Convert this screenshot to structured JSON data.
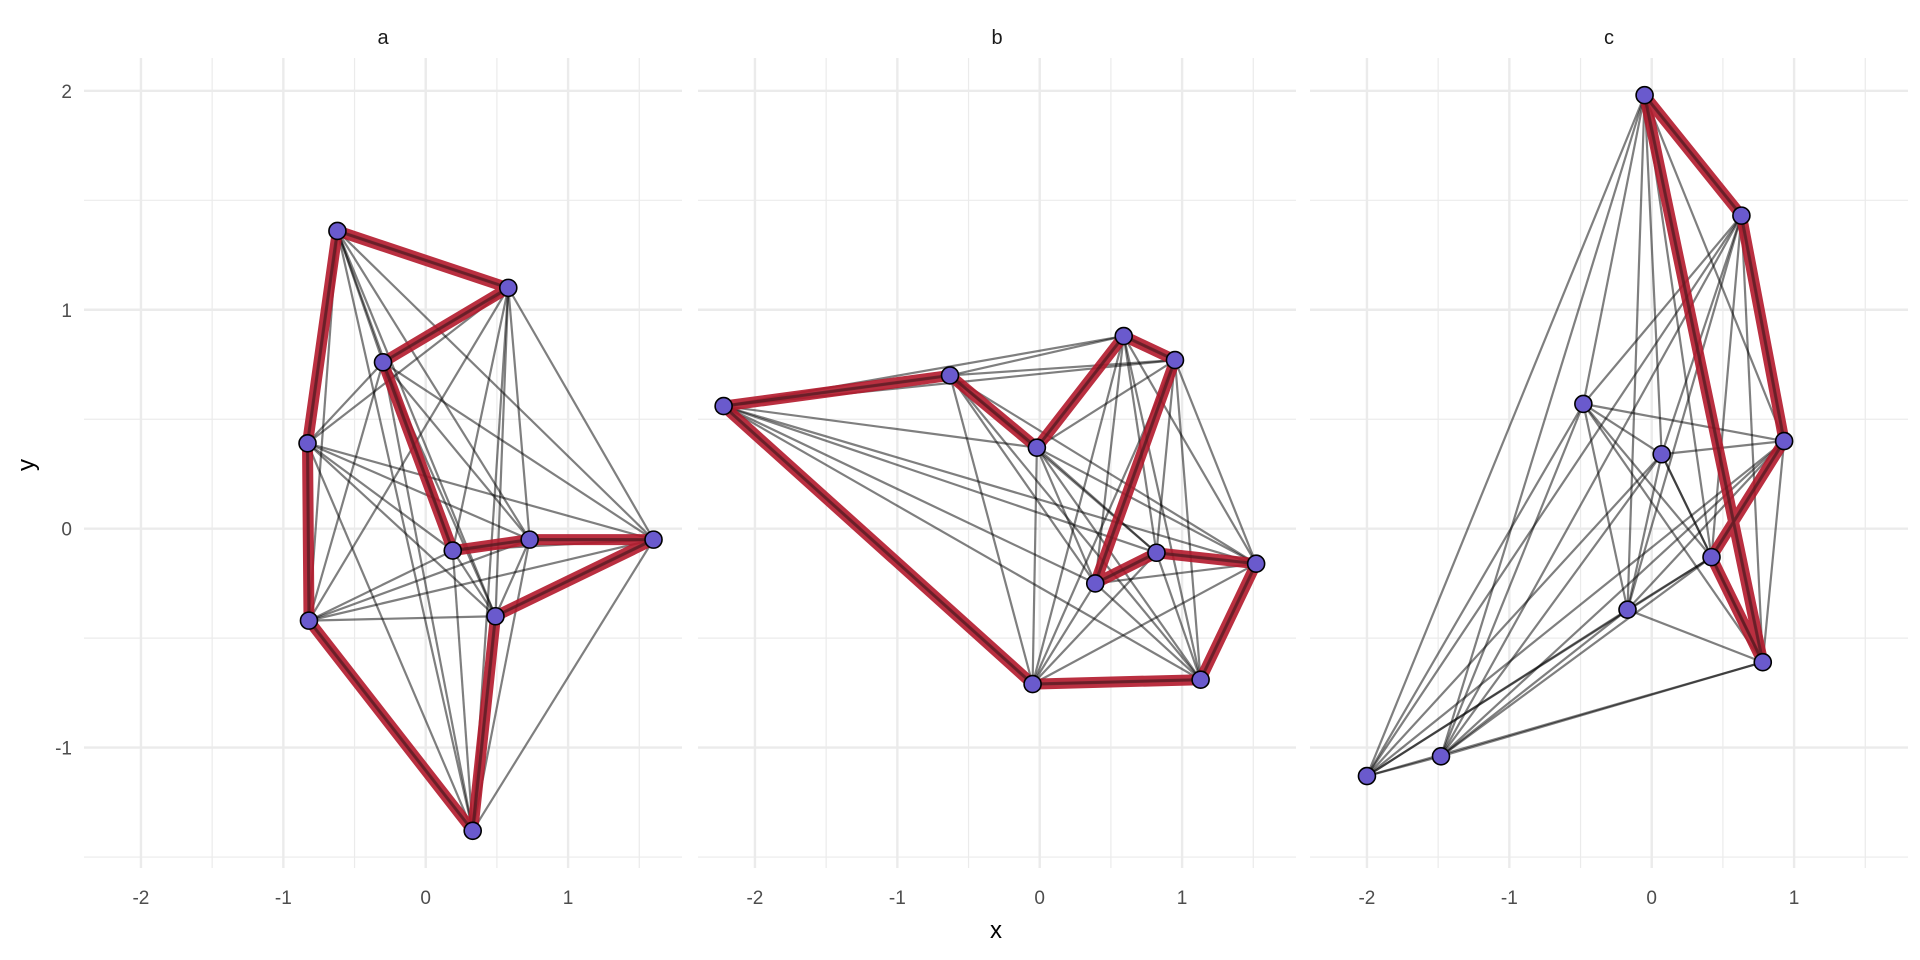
{
  "chart_data": {
    "type": "scatter",
    "xlabel": "x",
    "ylabel": "y",
    "xlim": [
      -2.4,
      1.8
    ],
    "ylim": [
      -1.55,
      2.15
    ],
    "x_ticks": [
      -2,
      -1,
      0,
      1
    ],
    "y_ticks": [
      -1,
      0,
      1,
      2
    ],
    "grid": true,
    "colors": {
      "path": "#b2182b",
      "point_fill": "#6a5acd",
      "edge": "#000000"
    },
    "panels": [
      {
        "label": "a",
        "points": [
          {
            "x": -0.62,
            "y": 1.36
          },
          {
            "x": 0.58,
            "y": 1.1
          },
          {
            "x": -0.3,
            "y": 0.76
          },
          {
            "x": -0.83,
            "y": 0.39
          },
          {
            "x": 0.19,
            "y": -0.1
          },
          {
            "x": 0.73,
            "y": -0.05
          },
          {
            "x": 1.6,
            "y": -0.05
          },
          {
            "x": -0.82,
            "y": -0.42
          },
          {
            "x": 0.49,
            "y": -0.4
          },
          {
            "x": 0.33,
            "y": -1.38
          }
        ],
        "path": [
          0,
          1,
          2,
          4,
          5,
          6,
          8,
          9,
          7,
          3,
          0
        ]
      },
      {
        "label": "b",
        "points": [
          {
            "x": -2.22,
            "y": 0.56
          },
          {
            "x": -0.63,
            "y": 0.7
          },
          {
            "x": -0.02,
            "y": 0.37
          },
          {
            "x": 0.59,
            "y": 0.88
          },
          {
            "x": 0.95,
            "y": 0.77
          },
          {
            "x": 0.39,
            "y": -0.25
          },
          {
            "x": 0.82,
            "y": -0.11
          },
          {
            "x": 1.52,
            "y": -0.16
          },
          {
            "x": -0.05,
            "y": -0.71
          },
          {
            "x": 1.13,
            "y": -0.69
          }
        ],
        "path": [
          0,
          1,
          2,
          3,
          4,
          5,
          6,
          7,
          9,
          8,
          0
        ]
      },
      {
        "label": "c",
        "points": [
          {
            "x": -0.05,
            "y": 1.98
          },
          {
            "x": 0.63,
            "y": 1.43
          },
          {
            "x": -0.48,
            "y": 0.57
          },
          {
            "x": 0.07,
            "y": 0.34
          },
          {
            "x": 0.93,
            "y": 0.4
          },
          {
            "x": 0.42,
            "y": -0.13
          },
          {
            "x": -0.17,
            "y": -0.37
          },
          {
            "x": 0.78,
            "y": -0.61
          },
          {
            "x": -1.48,
            "y": -1.04
          },
          {
            "x": -2.0,
            "y": -1.13
          }
        ],
        "path": [
          0,
          1,
          4,
          5,
          7,
          0
        ]
      }
    ]
  }
}
